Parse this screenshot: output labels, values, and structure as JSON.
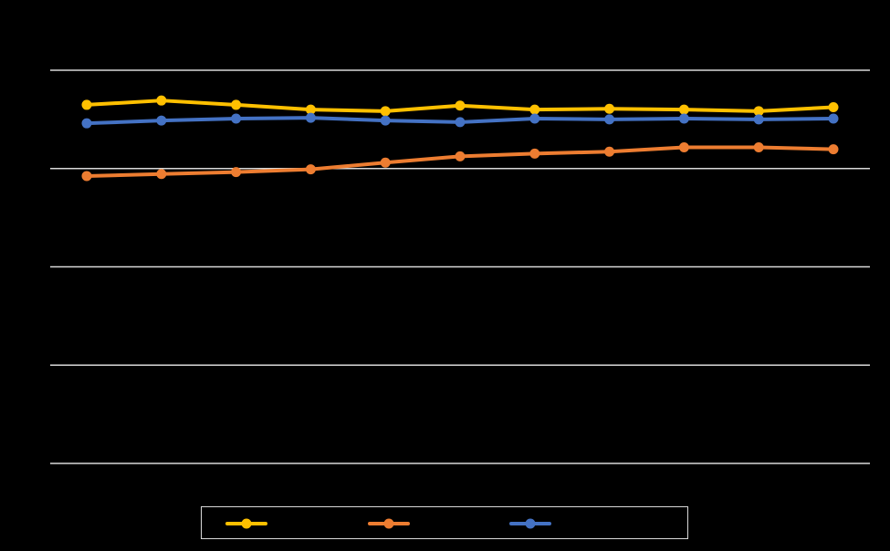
{
  "chart_data": {
    "type": "line",
    "title": "",
    "xlabel": "",
    "ylabel": "",
    "grid": true,
    "legend_position": "bottom",
    "categories": [
      "",
      "",
      "",
      "",
      "",
      "",
      "",
      "",
      "",
      "",
      ""
    ],
    "ylim": [
      0,
      100
    ],
    "y_ticks": [
      0,
      25,
      50,
      75,
      100
    ],
    "series": [
      {
        "color": "#FFC000",
        "values": [
          91.2,
          92.3,
          91.2,
          90.0,
          89.6,
          91.0,
          90.0,
          90.2,
          90.0,
          89.6,
          90.6
        ]
      },
      {
        "color": "#ED7D31",
        "values": [
          73.1,
          73.6,
          74.1,
          74.8,
          76.5,
          78.1,
          78.8,
          79.3,
          80.4,
          80.4,
          79.9
        ]
      },
      {
        "color": "#4472C4",
        "values": [
          86.5,
          87.2,
          87.7,
          87.9,
          87.2,
          86.8,
          87.7,
          87.5,
          87.7,
          87.5,
          87.7
        ]
      }
    ]
  }
}
